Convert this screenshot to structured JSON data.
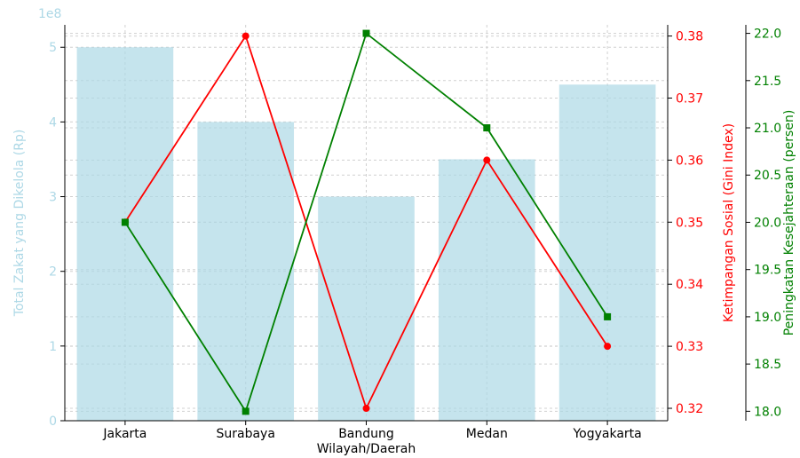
{
  "chart_data": {
    "type": "bar",
    "categories": [
      "Jakarta",
      "Surabaya",
      "Bandung",
      "Medan",
      "Yogyakarta"
    ],
    "xlabel": "Wilayah/Daerah",
    "grid": true,
    "bars": {
      "name": "Total Zakat yang Dikelola (Rp)",
      "values": [
        500000000,
        400000000,
        300000000,
        350000000,
        450000000
      ],
      "ylabel": "Total Zakat yang Dikelola (Rp)",
      "offset_text": "1e8",
      "ylim": [
        0,
        530000000
      ],
      "ticks": [
        0,
        100000000,
        200000000,
        300000000,
        400000000,
        500000000
      ],
      "tick_labels": [
        "0",
        "1",
        "2",
        "3",
        "4",
        "5"
      ],
      "color": "#add8e6"
    },
    "series": [
      {
        "values": [
          0.35,
          0.38,
          0.32,
          0.36,
          0.33
        ],
        "ylabel": "Ketimpangan Sosial (Gini Index)",
        "ylim": [
          0.318,
          0.3818
        ],
        "ticks": [
          0.32,
          0.33,
          0.34,
          0.35,
          0.36,
          0.37,
          0.38
        ],
        "tick_labels": [
          "0.32",
          "0.33",
          "0.34",
          "0.35",
          "0.36",
          "0.37",
          "0.38"
        ],
        "color": "#ff0000",
        "marker": "circle"
      },
      {
        "values": [
          20.0,
          18.0,
          22.0,
          21.0,
          19.0
        ],
        "ylabel": "Peningkatan Kesejahteraan (persen)",
        "ylim": [
          17.9,
          22.09
        ],
        "ticks": [
          18.0,
          18.5,
          19.0,
          19.5,
          20.0,
          20.5,
          21.0,
          21.5,
          22.0
        ],
        "tick_labels": [
          "18.0",
          "18.5",
          "19.0",
          "19.5",
          "20.0",
          "20.5",
          "21.0",
          "21.5",
          "22.0"
        ],
        "color": "#008000",
        "marker": "square"
      }
    ]
  }
}
